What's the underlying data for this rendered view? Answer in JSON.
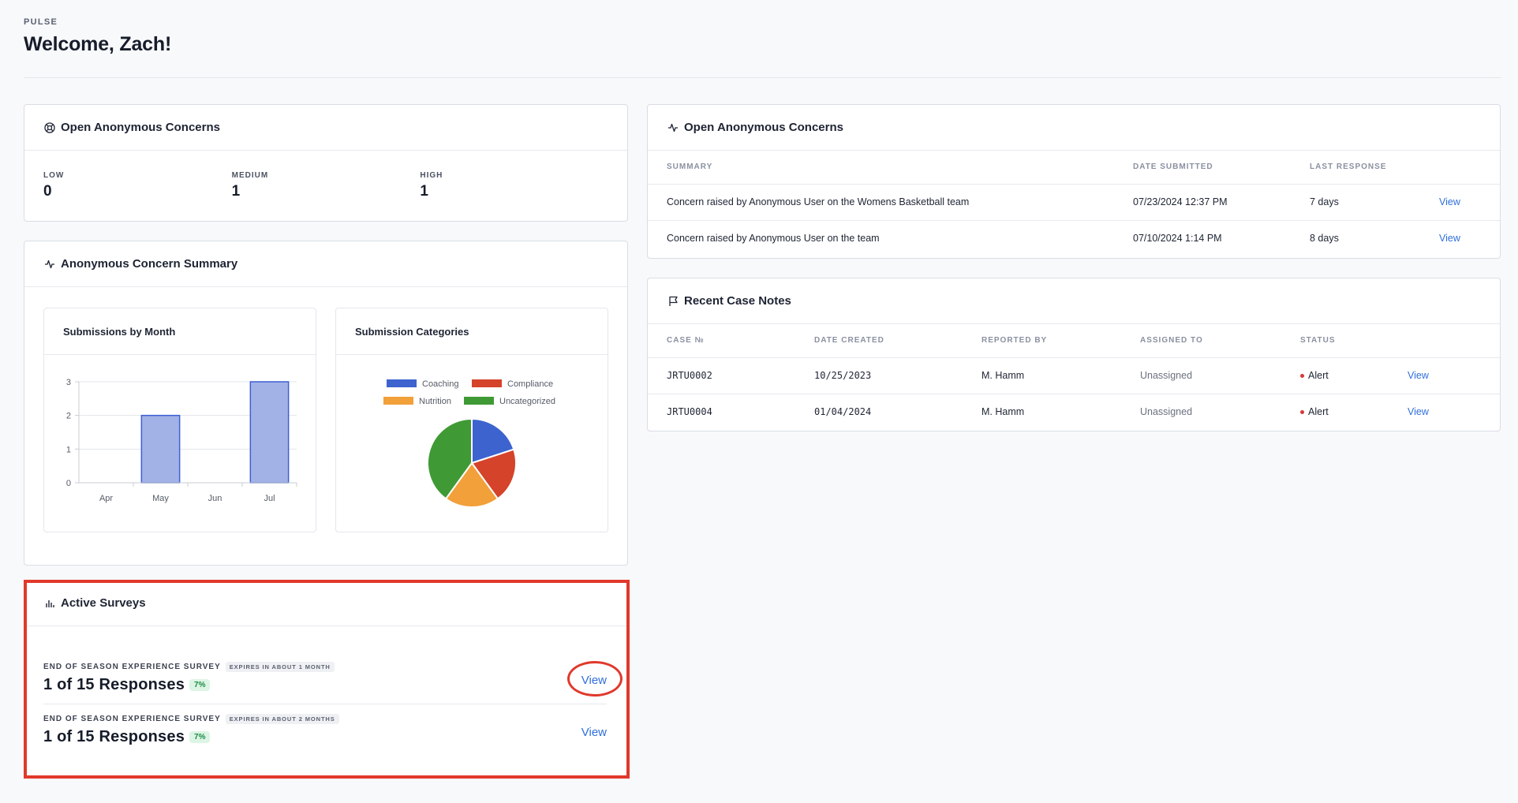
{
  "header": {
    "brand": "PULSE",
    "welcome": "Welcome, Zach!"
  },
  "levels_card": {
    "title": "Open Anonymous Concerns",
    "levels": [
      {
        "label": "LOW",
        "value": "0"
      },
      {
        "label": "MEDIUM",
        "value": "1"
      },
      {
        "label": "HIGH",
        "value": "1"
      }
    ]
  },
  "summary_card": {
    "title": "Anonymous Concern Summary",
    "bar_title": "Submissions by Month",
    "pie_title": "Submission Categories"
  },
  "chart_data": [
    {
      "type": "bar",
      "title": "Submissions by Month",
      "categories": [
        "Apr",
        "May",
        "Jun",
        "Jul"
      ],
      "values": [
        0,
        2,
        0,
        3
      ],
      "ylim": [
        0,
        3
      ],
      "yticks": [
        "0",
        "1",
        "2",
        "3"
      ],
      "color": "#a3b2e6",
      "border": "#3c5fd6",
      "grid": true
    },
    {
      "type": "pie",
      "title": "Submission Categories",
      "legend_position": "top",
      "series": [
        {
          "name": "Coaching",
          "value": 1,
          "color": "#3d63cf"
        },
        {
          "name": "Compliance",
          "value": 1,
          "color": "#d4432a"
        },
        {
          "name": "Nutrition",
          "value": 1,
          "color": "#f2a03a"
        },
        {
          "name": "Uncategorized",
          "value": 2,
          "color": "#3f9a35"
        }
      ]
    }
  ],
  "surveys_card": {
    "title": "Active Surveys",
    "surveys": [
      {
        "name": "END OF SEASON EXPERIENCE SURVEY",
        "expires": "EXPIRES IN ABOUT 1 MONTH",
        "responses": "1 of 15 Responses",
        "percent": "7%",
        "view": "View"
      },
      {
        "name": "END OF SEASON EXPERIENCE SURVEY",
        "expires": "EXPIRES IN ABOUT 2 MONTHS",
        "responses": "1 of 15 Responses",
        "percent": "7%",
        "view": "View"
      }
    ]
  },
  "concerns_table": {
    "title": "Open Anonymous Concerns",
    "headers": [
      "SUMMARY",
      "DATE SUBMITTED",
      "LAST RESPONSE",
      ""
    ],
    "rows": [
      {
        "summary": "Concern raised by Anonymous User on the Womens Basketball team",
        "date": "07/23/2024 12:37 PM",
        "last": "7 days",
        "view": "View"
      },
      {
        "summary": "Concern raised by Anonymous User on the team",
        "date": "07/10/2024 1:14 PM",
        "last": "8 days",
        "view": "View"
      }
    ]
  },
  "case_notes": {
    "title": "Recent Case Notes",
    "headers": [
      "CASE №",
      "DATE CREATED",
      "REPORTED BY",
      "ASSIGNED TO",
      "STATUS",
      ""
    ],
    "rows": [
      {
        "case": "JRTU0002",
        "date": "10/25/2023",
        "reporter": "M. Hamm",
        "assigned": "Unassigned",
        "status": "Alert",
        "view": "View"
      },
      {
        "case": "JRTU0004",
        "date": "01/04/2024",
        "reporter": "M. Hamm",
        "assigned": "Unassigned",
        "status": "Alert",
        "view": "View"
      }
    ]
  }
}
